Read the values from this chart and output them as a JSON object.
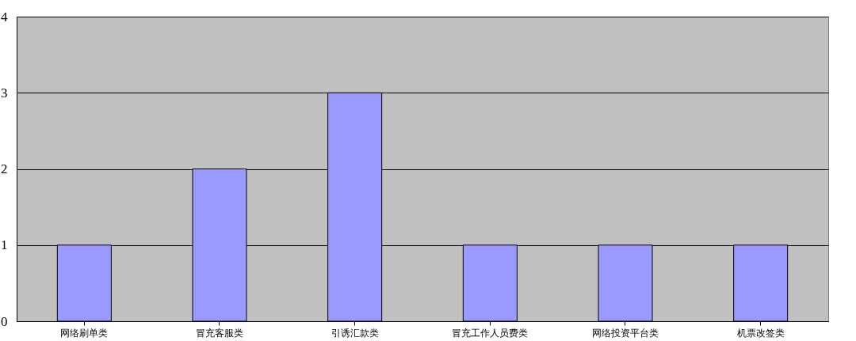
{
  "chart_data": {
    "type": "bar",
    "categories": [
      "网络刷单类",
      "冒充客服类",
      "引诱汇款类",
      "冒充工作人员费类",
      "网络投资平台类",
      "机票改签类"
    ],
    "values": [
      1,
      2,
      3,
      1,
      1,
      1
    ],
    "color": "#9999ff",
    "ylim": [
      0,
      4
    ],
    "yticks": [
      0,
      1,
      2,
      3,
      4
    ],
    "grid": "y"
  }
}
